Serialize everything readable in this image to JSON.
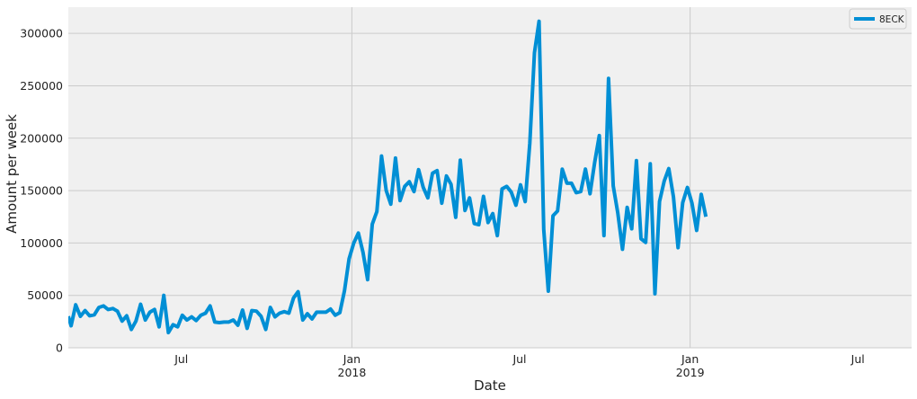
{
  "chart_data": {
    "type": "line",
    "style": "fivethirtyeight",
    "xlabel": "Date",
    "ylabel": "Amount per week",
    "xlim": [
      "2017-03-01",
      "2019-08-28"
    ],
    "ylim": [
      0,
      325000
    ],
    "yticks": [
      0,
      50000,
      100000,
      150000,
      200000,
      250000,
      300000
    ],
    "ytick_labels": [
      "0",
      "50000",
      "100000",
      "150000",
      "200000",
      "250000",
      "300000"
    ],
    "xticks": [
      {
        "date": "2017-07-01",
        "label": "Jul",
        "sublabel": ""
      },
      {
        "date": "2018-01-01",
        "label": "Jan",
        "sublabel": "2018"
      },
      {
        "date": "2018-07-01",
        "label": "Jul",
        "sublabel": ""
      },
      {
        "date": "2019-01-01",
        "label": "Jan",
        "sublabel": "2019"
      },
      {
        "date": "2019-07-01",
        "label": "Jul",
        "sublabel": ""
      }
    ],
    "major_gridlines": [
      "2018-01-01",
      "2019-01-01"
    ],
    "grid": true,
    "legend_position": "upper right",
    "series": [
      {
        "name": "8ECK",
        "color": "#008fd5",
        "points": [
          [
            "2017-03-01",
            30000
          ],
          [
            "2017-03-04",
            21000
          ],
          [
            "2017-03-09",
            41000
          ],
          [
            "2017-03-14",
            30000
          ],
          [
            "2017-03-19",
            35500
          ],
          [
            "2017-03-24",
            30500
          ],
          [
            "2017-03-29",
            31500
          ],
          [
            "2017-04-03",
            38500
          ],
          [
            "2017-04-08",
            40000
          ],
          [
            "2017-04-13",
            36500
          ],
          [
            "2017-04-18",
            37500
          ],
          [
            "2017-04-23",
            35000
          ],
          [
            "2017-04-28",
            25500
          ],
          [
            "2017-05-03",
            30500
          ],
          [
            "2017-05-08",
            17500
          ],
          [
            "2017-05-13",
            25500
          ],
          [
            "2017-05-18",
            41500
          ],
          [
            "2017-05-23",
            26500
          ],
          [
            "2017-05-28",
            34000
          ],
          [
            "2017-06-02",
            36500
          ],
          [
            "2017-06-07",
            20000
          ],
          [
            "2017-06-12",
            50000
          ],
          [
            "2017-06-17",
            14500
          ],
          [
            "2017-06-22",
            22000
          ],
          [
            "2017-06-27",
            20000
          ],
          [
            "2017-07-02",
            31000
          ],
          [
            "2017-07-07",
            26500
          ],
          [
            "2017-07-12",
            29500
          ],
          [
            "2017-07-17",
            26000
          ],
          [
            "2017-07-22",
            31000
          ],
          [
            "2017-07-27",
            33000
          ],
          [
            "2017-08-01",
            40000
          ],
          [
            "2017-08-06",
            24500
          ],
          [
            "2017-08-11",
            24000
          ],
          [
            "2017-08-16",
            24500
          ],
          [
            "2017-08-21",
            24500
          ],
          [
            "2017-08-26",
            26500
          ],
          [
            "2017-08-31",
            21500
          ],
          [
            "2017-09-05",
            36000
          ],
          [
            "2017-09-10",
            18500
          ],
          [
            "2017-09-15",
            35500
          ],
          [
            "2017-09-20",
            35000
          ],
          [
            "2017-09-25",
            30000
          ],
          [
            "2017-09-30",
            17500
          ],
          [
            "2017-10-05",
            38500
          ],
          [
            "2017-10-10",
            29500
          ],
          [
            "2017-10-15",
            33000
          ],
          [
            "2017-10-20",
            34500
          ],
          [
            "2017-10-25",
            33000
          ],
          [
            "2017-10-30",
            47500
          ],
          [
            "2017-11-04",
            53500
          ],
          [
            "2017-11-09",
            26500
          ],
          [
            "2017-11-14",
            32500
          ],
          [
            "2017-11-19",
            27500
          ],
          [
            "2017-11-24",
            34000
          ],
          [
            "2017-11-29",
            34000
          ],
          [
            "2017-12-04",
            34000
          ],
          [
            "2017-12-09",
            37000
          ],
          [
            "2017-12-14",
            31000
          ],
          [
            "2017-12-19",
            33500
          ],
          [
            "2017-12-24",
            54500
          ],
          [
            "2017-12-29",
            85000
          ],
          [
            "2018-01-03",
            100000
          ],
          [
            "2018-01-08",
            109500
          ],
          [
            "2018-01-13",
            91000
          ],
          [
            "2018-01-18",
            65000
          ],
          [
            "2018-01-23",
            118000
          ],
          [
            "2018-01-28",
            130000
          ],
          [
            "2018-02-02",
            183000
          ],
          [
            "2018-02-07",
            150000
          ],
          [
            "2018-02-12",
            137000
          ],
          [
            "2018-02-17",
            181000
          ],
          [
            "2018-02-22",
            140500
          ],
          [
            "2018-02-27",
            154000
          ],
          [
            "2018-03-04",
            158500
          ],
          [
            "2018-03-09",
            149000
          ],
          [
            "2018-03-14",
            170000
          ],
          [
            "2018-03-19",
            153000
          ],
          [
            "2018-03-24",
            143000
          ],
          [
            "2018-03-29",
            166500
          ],
          [
            "2018-04-03",
            169000
          ],
          [
            "2018-04-08",
            138000
          ],
          [
            "2018-04-13",
            164000
          ],
          [
            "2018-04-18",
            156000
          ],
          [
            "2018-04-23",
            124500
          ],
          [
            "2018-04-28",
            179000
          ],
          [
            "2018-05-03",
            131000
          ],
          [
            "2018-05-08",
            143000
          ],
          [
            "2018-05-13",
            118500
          ],
          [
            "2018-05-18",
            117500
          ],
          [
            "2018-05-23",
            144500
          ],
          [
            "2018-05-28",
            119500
          ],
          [
            "2018-06-02",
            128000
          ],
          [
            "2018-06-07",
            107000
          ],
          [
            "2018-06-12",
            151500
          ],
          [
            "2018-06-17",
            154000
          ],
          [
            "2018-06-22",
            148500
          ],
          [
            "2018-06-27",
            136000
          ],
          [
            "2018-07-02",
            155500
          ],
          [
            "2018-07-07",
            139500
          ],
          [
            "2018-07-12",
            195000
          ],
          [
            "2018-07-17",
            281500
          ],
          [
            "2018-07-22",
            311500
          ],
          [
            "2018-07-27",
            113000
          ],
          [
            "2018-08-01",
            54000
          ],
          [
            "2018-08-06",
            126000
          ],
          [
            "2018-08-11",
            130500
          ],
          [
            "2018-08-16",
            170500
          ],
          [
            "2018-08-21",
            157000
          ],
          [
            "2018-08-26",
            157000
          ],
          [
            "2018-08-31",
            148000
          ],
          [
            "2018-09-05",
            149000
          ],
          [
            "2018-09-10",
            170500
          ],
          [
            "2018-09-15",
            147000
          ],
          [
            "2018-09-20",
            177000
          ],
          [
            "2018-09-25",
            202500
          ],
          [
            "2018-09-30",
            107000
          ],
          [
            "2018-10-05",
            257000
          ],
          [
            "2018-10-10",
            154500
          ],
          [
            "2018-10-15",
            128500
          ],
          [
            "2018-10-20",
            94000
          ],
          [
            "2018-10-25",
            134000
          ],
          [
            "2018-10-30",
            113500
          ],
          [
            "2018-11-04",
            178500
          ],
          [
            "2018-11-09",
            104000
          ],
          [
            "2018-11-14",
            100500
          ],
          [
            "2018-11-19",
            175500
          ],
          [
            "2018-11-24",
            51500
          ],
          [
            "2018-11-29",
            139500
          ],
          [
            "2018-12-04",
            159000
          ],
          [
            "2018-12-09",
            171000
          ],
          [
            "2018-12-14",
            144000
          ],
          [
            "2018-12-19",
            95500
          ],
          [
            "2018-12-24",
            138500
          ],
          [
            "2018-12-29",
            153000
          ],
          [
            "2019-01-03",
            138000
          ],
          [
            "2019-01-08",
            112000
          ],
          [
            "2019-01-13",
            146500
          ],
          [
            "2019-01-18",
            125000
          ]
        ]
      }
    ]
  }
}
